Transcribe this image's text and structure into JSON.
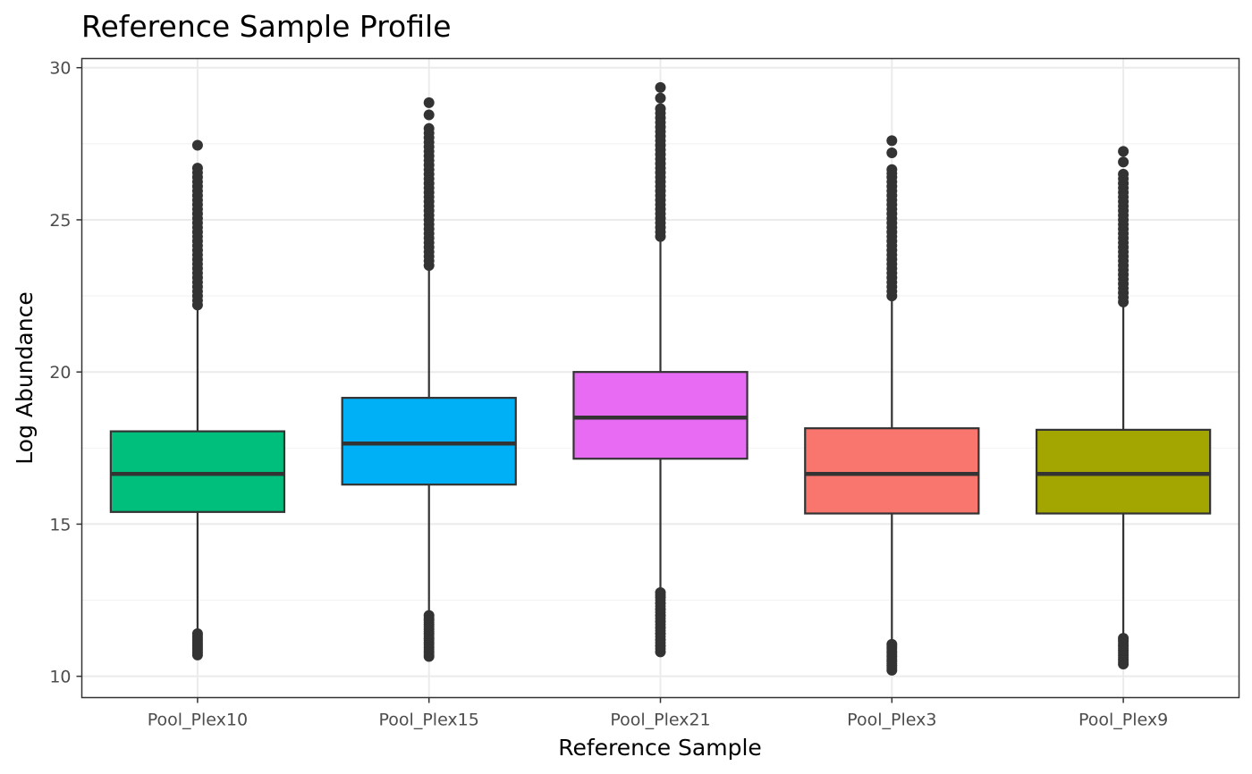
{
  "chart_data": {
    "type": "boxplot",
    "title": "Reference Sample Profile",
    "xlabel": "Reference Sample",
    "ylabel": "Log Abundance",
    "ylim": [
      9.3,
      30.3
    ],
    "yticks": [
      10,
      15,
      20,
      25,
      30
    ],
    "grid": true,
    "legend": "none",
    "categories": [
      "Pool_Plex10",
      "Pool_Plex15",
      "Pool_Plex21",
      "Pool_Plex3",
      "Pool_Plex9"
    ],
    "boxes": [
      {
        "category": "Pool_Plex10",
        "color": "#00BF7D",
        "whisker_low": 11.5,
        "q1": 15.4,
        "median": 16.65,
        "q3": 18.05,
        "whisker_high": 22.1,
        "outliers_low": [
          10.7,
          10.8,
          10.9,
          11.0,
          11.1,
          11.2,
          11.3,
          11.4
        ],
        "outliers_high": [
          22.2,
          22.5,
          22.8,
          23.1,
          23.4,
          23.7,
          24.0,
          24.3,
          24.6,
          24.9,
          25.2,
          25.5,
          25.8,
          26.1,
          26.4,
          26.7,
          27.45
        ]
      },
      {
        "category": "Pool_Plex15",
        "color": "#00B0F6",
        "whisker_low": 12.05,
        "q1": 16.3,
        "median": 17.65,
        "q3": 19.15,
        "whisker_high": 23.4,
        "outliers_low": [
          10.65,
          10.8,
          10.95,
          11.1,
          11.25,
          11.4,
          11.55,
          11.7,
          11.85,
          12.0
        ],
        "outliers_high": [
          23.5,
          23.8,
          24.1,
          24.4,
          24.7,
          25.0,
          25.3,
          25.6,
          25.9,
          26.2,
          26.5,
          26.8,
          27.1,
          27.4,
          27.7,
          28.0,
          28.45,
          28.85
        ]
      },
      {
        "category": "Pool_Plex21",
        "color": "#E76BF3",
        "whisker_low": 12.8,
        "q1": 17.15,
        "median": 18.5,
        "q3": 20.0,
        "whisker_high": 24.35,
        "outliers_low": [
          10.8,
          11.0,
          11.2,
          11.4,
          11.6,
          11.8,
          12.0,
          12.2,
          12.4,
          12.6,
          12.75
        ],
        "outliers_high": [
          24.45,
          24.75,
          25.05,
          25.35,
          25.65,
          25.95,
          26.25,
          26.55,
          26.85,
          27.15,
          27.45,
          27.75,
          28.05,
          28.35,
          28.65,
          29.0,
          29.35
        ]
      },
      {
        "category": "Pool_Plex3",
        "color": "#F8766D",
        "whisker_low": 11.1,
        "q1": 15.35,
        "median": 16.65,
        "q3": 18.15,
        "whisker_high": 22.4,
        "outliers_low": [
          10.2,
          10.35,
          10.5,
          10.65,
          10.8,
          10.95,
          11.05
        ],
        "outliers_high": [
          22.5,
          22.8,
          23.1,
          23.4,
          23.7,
          24.0,
          24.3,
          24.6,
          24.9,
          25.2,
          25.5,
          25.8,
          26.1,
          26.4,
          26.65,
          27.2,
          27.6
        ]
      },
      {
        "category": "Pool_Plex9",
        "color": "#A3A500",
        "whisker_low": 11.3,
        "q1": 15.35,
        "median": 16.65,
        "q3": 18.1,
        "whisker_high": 22.2,
        "outliers_low": [
          10.4,
          10.55,
          10.7,
          10.85,
          11.0,
          11.15,
          11.25
        ],
        "outliers_high": [
          22.3,
          22.6,
          22.9,
          23.2,
          23.5,
          23.8,
          24.1,
          24.4,
          24.7,
          25.0,
          25.3,
          25.6,
          25.9,
          26.2,
          26.5,
          26.9,
          27.25
        ]
      }
    ]
  }
}
